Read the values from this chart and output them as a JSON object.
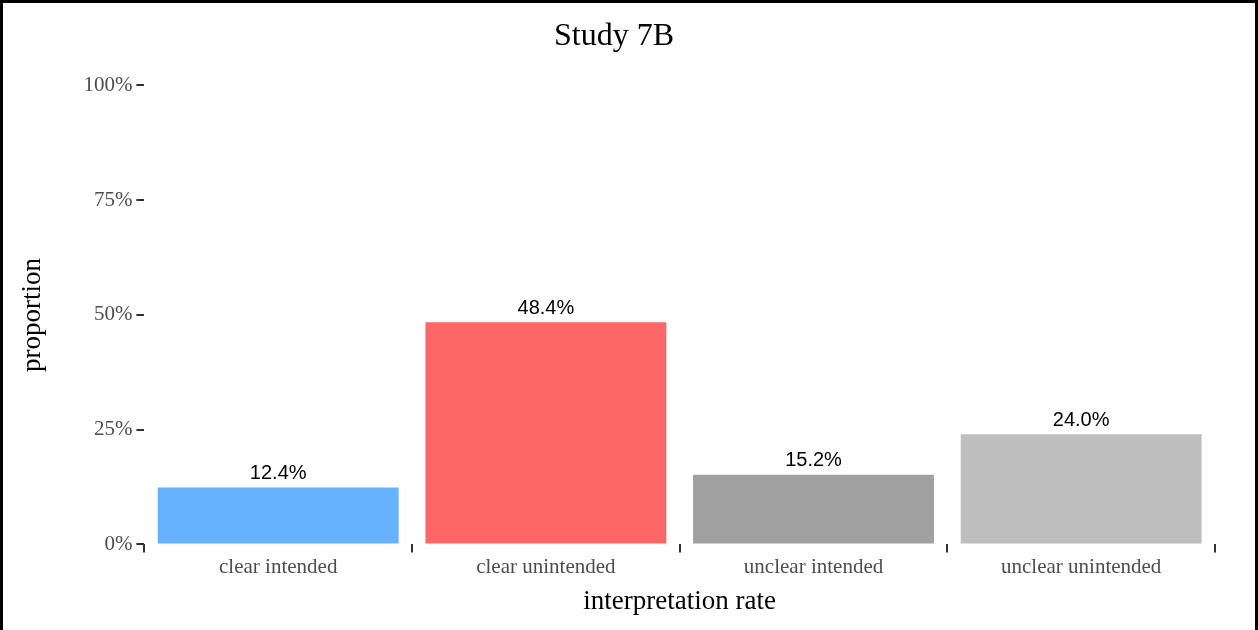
{
  "chart_data": {
    "type": "bar",
    "title": "Study 7B",
    "xlabel": "interpretation rate",
    "ylabel": "proportion",
    "categories": [
      "clear intended",
      "clear unintended",
      "unclear intended",
      "unclear unintended"
    ],
    "values": [
      12.4,
      48.4,
      15.2,
      24.0
    ],
    "colors": [
      "#66b2ff",
      "#ff6666",
      "#a0a0a0",
      "#bebebe"
    ],
    "value_labels": [
      "12.4%",
      "48.4%",
      "15.2%",
      "24.0%"
    ],
    "ylim": [
      0,
      100
    ],
    "yticks": [
      {
        "value": 0,
        "label": "0%"
      },
      {
        "value": 25,
        "label": "25%"
      },
      {
        "value": 50,
        "label": "50%"
      },
      {
        "value": 75,
        "label": "75%"
      },
      {
        "value": 100,
        "label": "100%"
      }
    ],
    "grid": false,
    "legend": false
  }
}
